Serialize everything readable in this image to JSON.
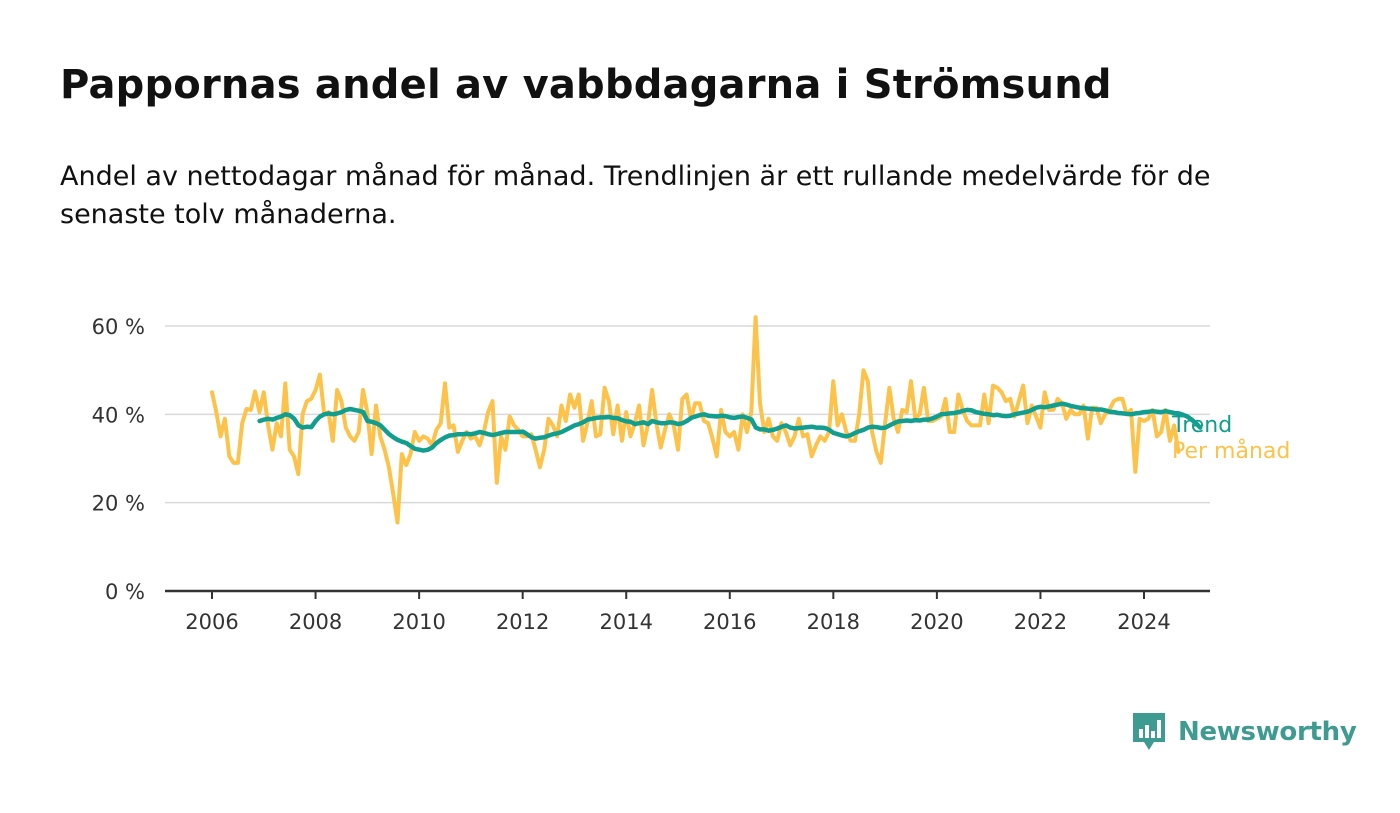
{
  "title": "Pappornas andel av vabbdagarna i Strömsund",
  "subtitle": "Andel av nettodagar månad för månad. Trendlinjen är ett rullande medelvärde för de senaste tolv månaderna.",
  "logo": {
    "text": "Newsworthy",
    "icon": "newsworthy-chart-icon"
  },
  "colors": {
    "monthly": "#fcc24a",
    "trend": "#119e8e",
    "grid": "#d9d9d9",
    "axis": "#333333",
    "logo": "#3e9b91"
  },
  "chart_data": {
    "type": "line",
    "title": "Pappornas andel av vabbdagarna i Strömsund",
    "xlabel": "",
    "ylabel": "",
    "xlim": [
      2006.0,
      2025.3
    ],
    "ylim": [
      0,
      60
    ],
    "grid": true,
    "yticks": [
      0,
      20,
      40,
      60
    ],
    "ytick_labels": [
      "0 %",
      "20 %",
      "40 %",
      "60 %"
    ],
    "xticks": [
      2006,
      2008,
      2010,
      2012,
      2014,
      2016,
      2018,
      2020,
      2022,
      2024
    ],
    "xtick_labels": [
      "2006",
      "2008",
      "2010",
      "2012",
      "2014",
      "2016",
      "2018",
      "2020",
      "2022",
      "2024"
    ],
    "legend_position": "end-of-lines",
    "series": [
      {
        "name": "Trend",
        "start": 2006.92,
        "step": 0.08333,
        "values": [
          38.5,
          38.8,
          39,
          38.8,
          39.2,
          39.5,
          40,
          39.8,
          39,
          37.5,
          37,
          37.2,
          37.1,
          38.5,
          39.5,
          40,
          40.2,
          40,
          40.2,
          40.5,
          41,
          41.2,
          41,
          40.8,
          40.5,
          38.5,
          38.3,
          38,
          37.5,
          36.5,
          35.5,
          34.8,
          34.2,
          33.8,
          33.5,
          32.8,
          32.2,
          32,
          31.8,
          32,
          32.5,
          33.5,
          34.2,
          34.8,
          35.2,
          35.3,
          35.5,
          35.5,
          35.6,
          35.5,
          35.7,
          36,
          35.8,
          35.5,
          35.3,
          35.5,
          35.8,
          36,
          36,
          36,
          36,
          36.1,
          35.5,
          34.8,
          34.5,
          34.7,
          34.8,
          35.2,
          35.5,
          35.7,
          36,
          36.5,
          37,
          37.5,
          37.8,
          38.2,
          38.8,
          39,
          39.2,
          39.3,
          39.3,
          39.4,
          39.2,
          39.1,
          38.7,
          38.4,
          38.3,
          37.8,
          38,
          38.2,
          37.8,
          38.5,
          38.2,
          38,
          38,
          38.2,
          38.1,
          37.8,
          38,
          38.5,
          39.2,
          39.5,
          39.8,
          40,
          39.7,
          39.6,
          39.5,
          39.7,
          39.6,
          39.3,
          39.2,
          39.4,
          39.5,
          39.2,
          38.8,
          37,
          36.6,
          36.6,
          36.3,
          36.5,
          36.8,
          37.2,
          37.5,
          37,
          36.8,
          36.9,
          37,
          37.1,
          37.2,
          37,
          37,
          36.9,
          36.5,
          35.8,
          35.5,
          35.2,
          35,
          35.3,
          35.8,
          36.2,
          36.5,
          37,
          37.2,
          37.1,
          36.9,
          37,
          37.5,
          38,
          38.4,
          38.5,
          38.6,
          38.5,
          38.7,
          38.6,
          38.8,
          38.8,
          39.1,
          39.5,
          40,
          40.1,
          40.2,
          40.3,
          40.5,
          40.8,
          41,
          40.9,
          40.5,
          40.3,
          40.1,
          40,
          39.8,
          39.9,
          39.7,
          39.6,
          39.7,
          40,
          40.2,
          40.4,
          40.6,
          41,
          41.5,
          41.7,
          41.6,
          41.8,
          42,
          42.2,
          42.4,
          42.2,
          41.9,
          41.7,
          41.5,
          41.4,
          41.3,
          41.2,
          41.1,
          41.1,
          40.9,
          40.6,
          40.5,
          40.3,
          40.2,
          40.1,
          40,
          40.2,
          40.3,
          40.5,
          40.6,
          40.7,
          40.6,
          40.5,
          40.7,
          40.5,
          40.3,
          40.2,
          39.9,
          39.5,
          38.8,
          38,
          37
        ]
      },
      {
        "name": "Per månad",
        "start": 2006.0,
        "step": 0.08333,
        "values": [
          45,
          40.5,
          35,
          39,
          30.5,
          29,
          29,
          38,
          41.2,
          41,
          45.2,
          40.5,
          45,
          37.5,
          32,
          38,
          35,
          47,
          32,
          30.5,
          26.5,
          40,
          43,
          43.5,
          45.5,
          49,
          40,
          40.5,
          34,
          45.5,
          43,
          37,
          35,
          34,
          36,
          45.5,
          40.5,
          31,
          42,
          35,
          32,
          28,
          22,
          15.5,
          31,
          28.5,
          31,
          36,
          34,
          35,
          34.5,
          33,
          36.5,
          38,
          47,
          37,
          37.5,
          31.5,
          34,
          36,
          34.5,
          35,
          33,
          36,
          40.5,
          43,
          24.5,
          35,
          32,
          39.5,
          37.5,
          36.5,
          35,
          35,
          35.5,
          32,
          28,
          32,
          39,
          37.5,
          35,
          42,
          38.5,
          44.5,
          41.5,
          44.5,
          34,
          38,
          43,
          35,
          35.5,
          46,
          43,
          35.5,
          42,
          34,
          40.5,
          35,
          38,
          42,
          33,
          37.5,
          45.5,
          38,
          32.5,
          36.5,
          40,
          37.5,
          32,
          43.5,
          44.5,
          39,
          42.5,
          42.5,
          38.5,
          38,
          34.5,
          30.5,
          41,
          36,
          35,
          36,
          32,
          40,
          36,
          40.5,
          62,
          42.5,
          36,
          39,
          35,
          34,
          38,
          36,
          33,
          35,
          39,
          35,
          35.5,
          30.5,
          33,
          35,
          34,
          36,
          47.5,
          37.5,
          40,
          36,
          34,
          34,
          40,
          50,
          47.5,
          36,
          31.5,
          29,
          38,
          46,
          39,
          36,
          41,
          40.5,
          47.5,
          39,
          40,
          46,
          38.5,
          38.5,
          39,
          39.5,
          43.5,
          36,
          36,
          44.5,
          41,
          38.5,
          37.5,
          37.5,
          37.5,
          44.5,
          38,
          46.5,
          46,
          45,
          43,
          43.5,
          39.5,
          43,
          46.5,
          38,
          42,
          39.5,
          37,
          45,
          41,
          41,
          43.5,
          42.5,
          39,
          41,
          40,
          40,
          42,
          34.5,
          41.5,
          41.5,
          38,
          40,
          41,
          43,
          43.5,
          43.5,
          40,
          41,
          27,
          39,
          38.5,
          39,
          41,
          35,
          36,
          41,
          34,
          37.5,
          31.5
        ]
      }
    ]
  }
}
